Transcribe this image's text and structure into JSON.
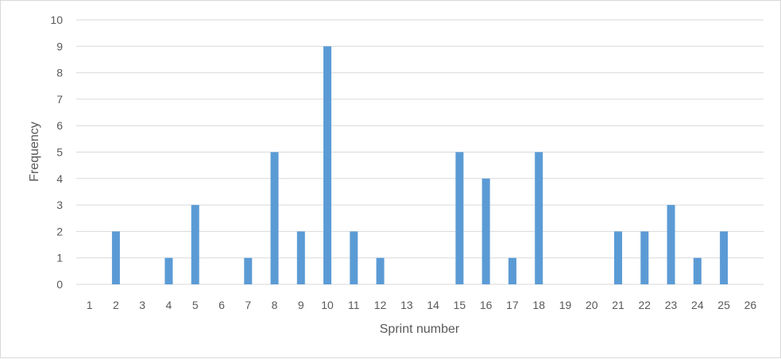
{
  "chart_data": {
    "type": "bar",
    "xlabel": "Sprint number",
    "ylabel": "Frequency",
    "ylim": [
      0,
      10
    ],
    "yticks": [
      "0",
      "1",
      "2",
      "3",
      "4",
      "5",
      "6",
      "7",
      "8",
      "9",
      "10"
    ],
    "categories": [
      "1",
      "2",
      "3",
      "4",
      "5",
      "6",
      "7",
      "8",
      "9",
      "10",
      "11",
      "12",
      "13",
      "14",
      "15",
      "16",
      "17",
      "18",
      "19",
      "20",
      "21",
      "22",
      "23",
      "24",
      "25",
      "26"
    ],
    "values": [
      0,
      2,
      0,
      1,
      3,
      0,
      1,
      5,
      2,
      9,
      2,
      1,
      0,
      0,
      5,
      4,
      1,
      5,
      0,
      0,
      2,
      2,
      3,
      1,
      2,
      0
    ],
    "grid": true,
    "legend": "none",
    "bar_color": "#5b9bd5",
    "grid_color": "#d9d9d9"
  }
}
